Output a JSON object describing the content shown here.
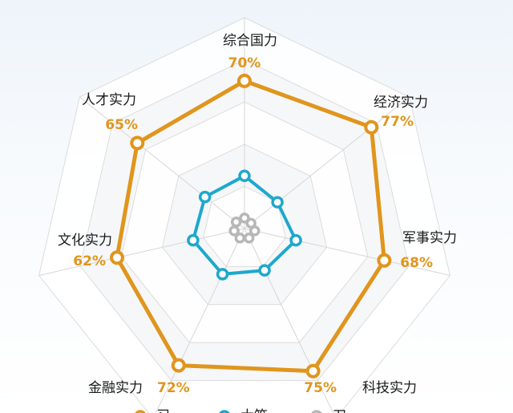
{
  "chart_data": {
    "type": "radar",
    "axes": [
      "综合国力",
      "经济实力",
      "军事实力",
      "科技实力",
      "金融实力",
      "文化实力",
      "人才实力"
    ],
    "value_labels": [
      "70%",
      "77%",
      "68%",
      "75%",
      "72%",
      "62%",
      "65%"
    ],
    "range": [
      0,
      100
    ],
    "grid_levels": 5,
    "series": [
      {
        "values": [
          70,
          77,
          68,
          75,
          72,
          62,
          65
        ],
        "color": "#e0951c"
      },
      {
        "values": [
          25,
          20,
          25,
          22,
          24,
          25,
          24
        ],
        "color": "#1ea8cc"
      },
      {
        "values": [
          5,
          4,
          5,
          5,
          5,
          5,
          5
        ],
        "color": "#b7b7b7"
      }
    ],
    "legend": [
      {
        "label": "习",
        "color": "#e0951c"
      },
      {
        "label": "大笛",
        "color": "#1ea8cc"
      },
      {
        "label": "刀",
        "color": "#b7b7b7"
      }
    ],
    "legend_position": "bottom"
  }
}
